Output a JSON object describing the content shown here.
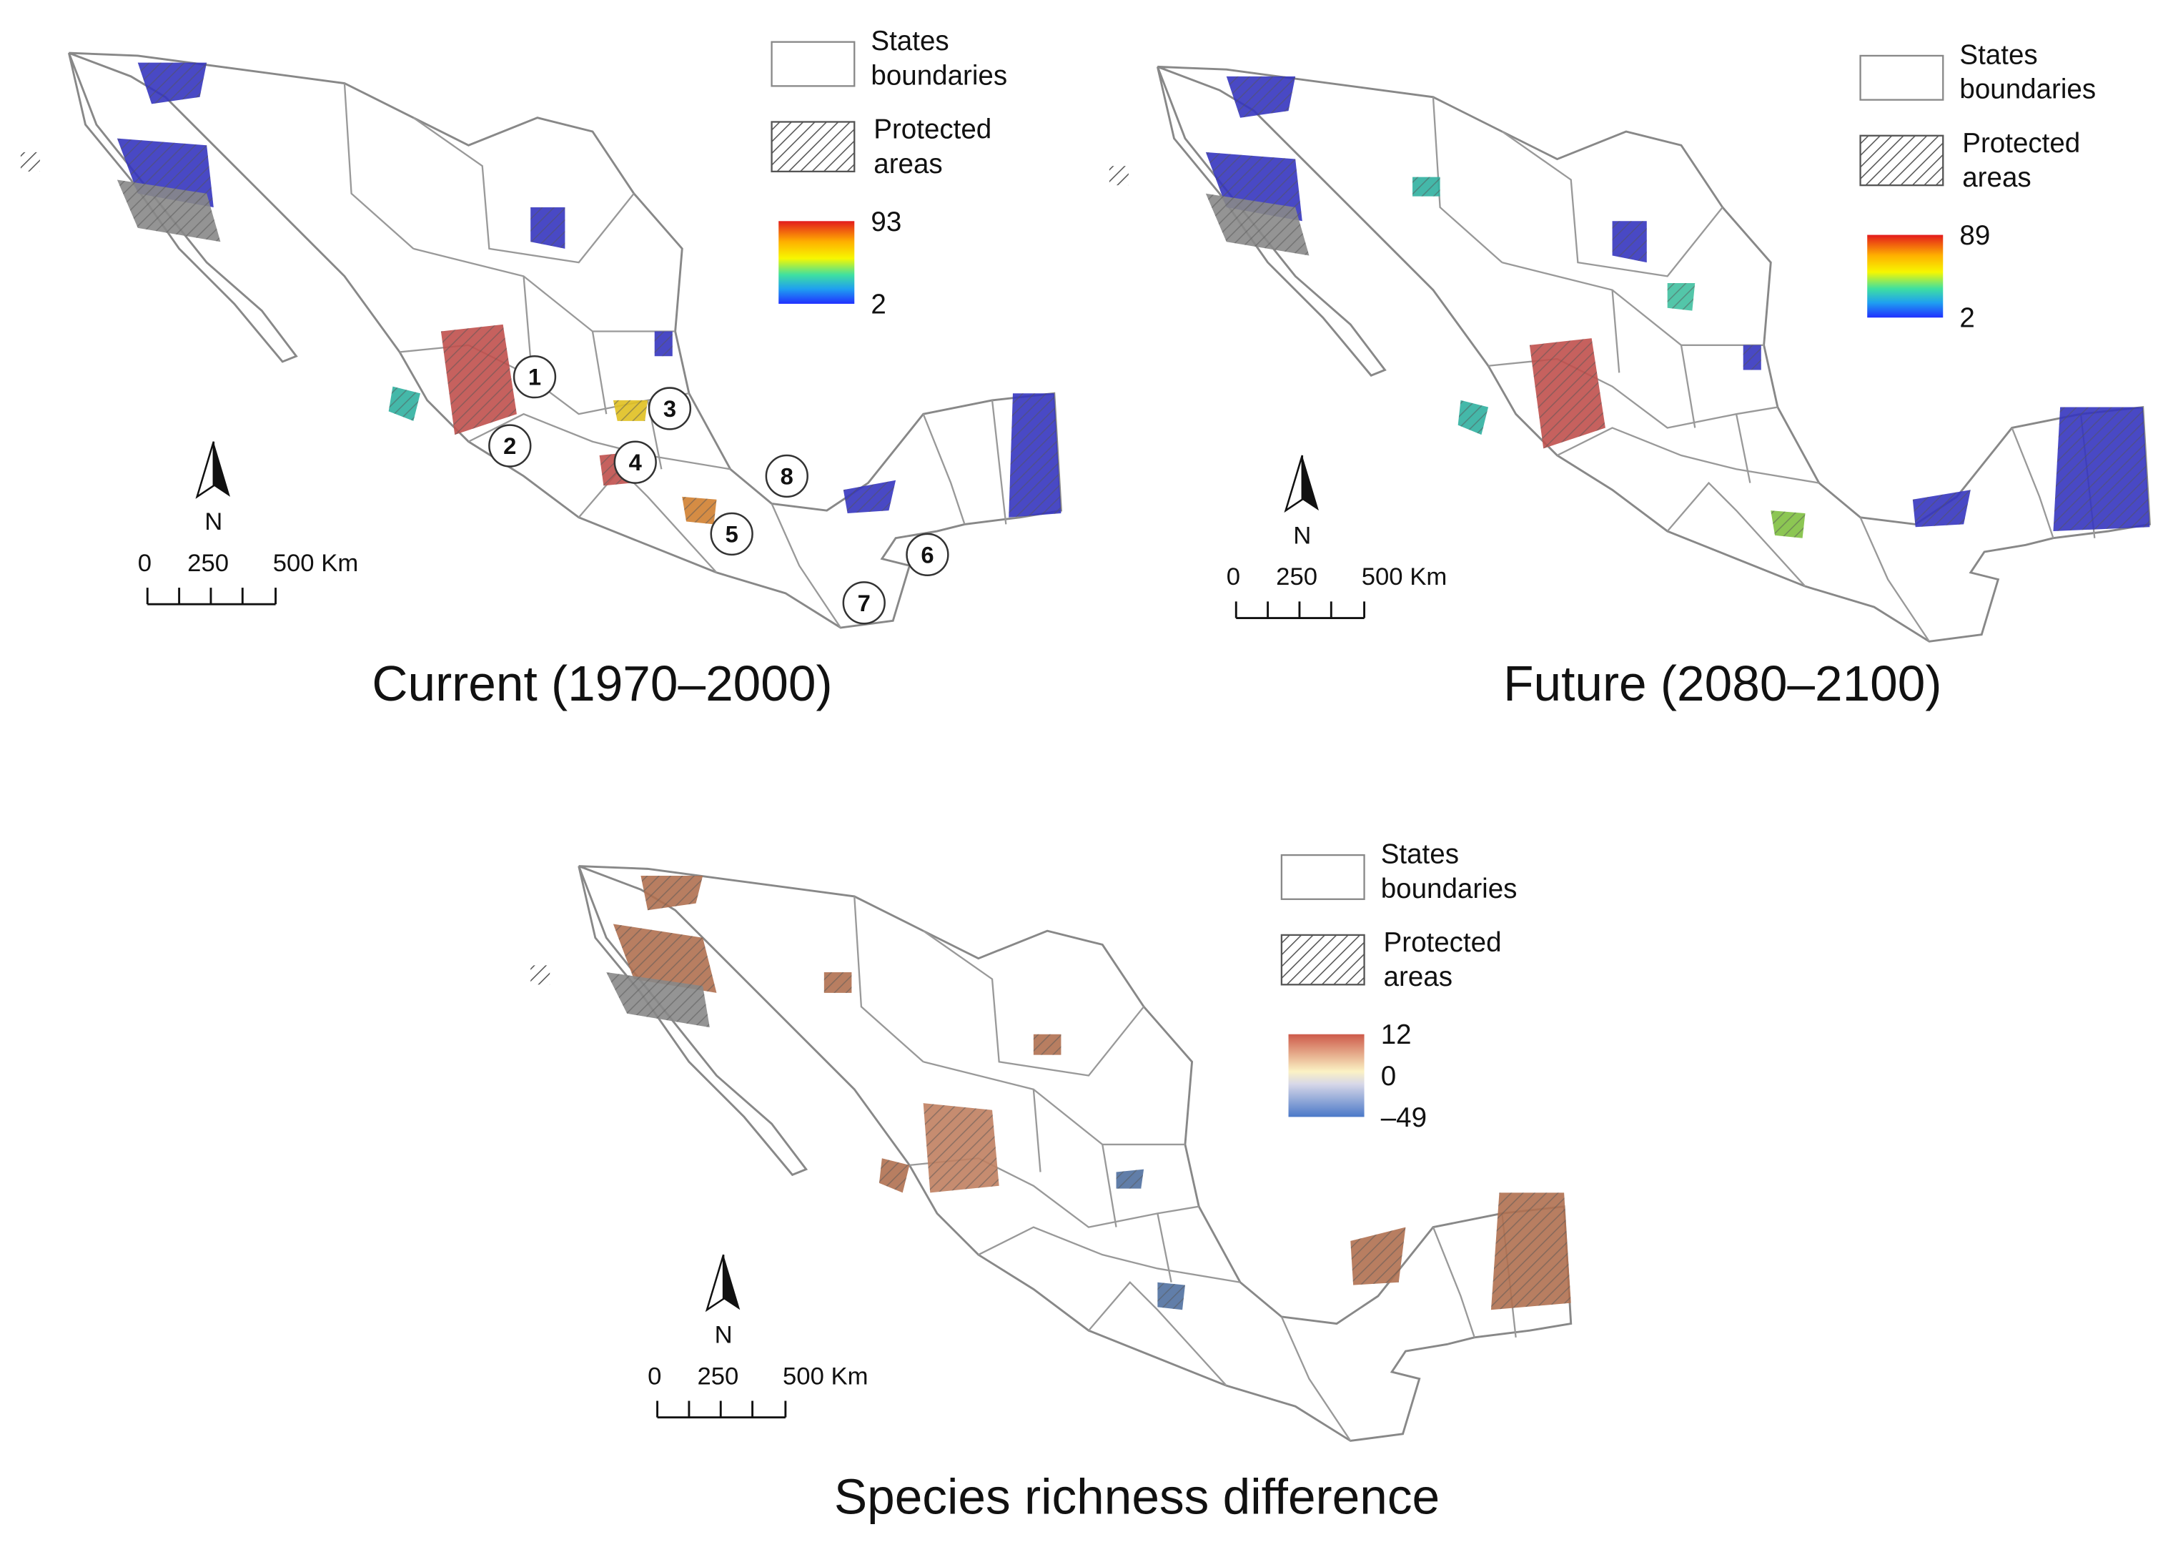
{
  "maps": [
    {
      "title": "Current (1970–2000)",
      "legend": {
        "boundaries": [
          "States",
          "boundaries"
        ],
        "protected": [
          "Protected",
          "areas"
        ],
        "scale_labels": [
          "93",
          "2"
        ]
      },
      "north": "N",
      "scale_bar": [
        "0",
        "250",
        "500 Km"
      ],
      "sites": [
        "1",
        "2",
        "3",
        "4",
        "5",
        "6",
        "7",
        "8"
      ]
    },
    {
      "title": "Future (2080–2100)",
      "legend": {
        "boundaries": [
          "States",
          "boundaries"
        ],
        "protected": [
          "Protected",
          "areas"
        ],
        "scale_labels": [
          "89",
          "2"
        ]
      },
      "north": "N",
      "scale_bar": [
        "0",
        "250",
        "500 Km"
      ]
    },
    {
      "title": "Species richness difference",
      "legend": {
        "boundaries": [
          "States",
          "boundaries"
        ],
        "protected": [
          "Protected",
          "areas"
        ],
        "scale_labels": [
          "12",
          "0",
          "–49"
        ]
      },
      "north": "N",
      "scale_bar": [
        "0",
        "250",
        "500 Km"
      ]
    }
  ]
}
